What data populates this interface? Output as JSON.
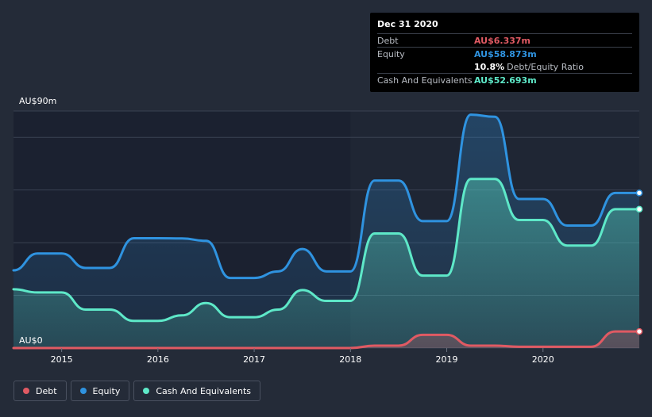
{
  "tooltip": {
    "date": "Dec 31 2020",
    "debt_label": "Debt",
    "debt_value": "AU$6.337m",
    "equity_label": "Equity",
    "equity_value": "AU$58.873m",
    "ratio_value": "10.8%",
    "ratio_label": "Debt/Equity Ratio",
    "cash_label": "Cash And Equivalents",
    "cash_value": "AU$52.693m"
  },
  "legend": [
    {
      "label": "Debt",
      "color": "#e05a63"
    },
    {
      "label": "Equity",
      "color": "#2f93e0"
    },
    {
      "label": "Cash And Equivalents",
      "color": "#5ee8c8"
    }
  ],
  "colors": {
    "debt": "#e05a63",
    "equity": "#2f93e0",
    "cash": "#5ee8c8",
    "grid": "#3a4252",
    "plot_bg": "#1b2130",
    "highlight_bg": "#1f2634"
  },
  "chart_data": {
    "type": "area",
    "title": "",
    "ylabel": "",
    "y_top_label": "AU$90m",
    "y_bottom_label": "AU$0",
    "ylim": [
      0,
      90
    ],
    "xlim": [
      2014.5,
      2021.0
    ],
    "x_ticks": [
      {
        "value": 2015,
        "label": "2015"
      },
      {
        "value": 2016,
        "label": "2016"
      },
      {
        "value": 2017,
        "label": "2017"
      },
      {
        "value": 2018,
        "label": "2018"
      },
      {
        "value": 2019,
        "label": "2019"
      },
      {
        "value": 2020,
        "label": "2020"
      }
    ],
    "y_grid": [
      0,
      20,
      40,
      60,
      80,
      90
    ],
    "highlight_start": 2018.0,
    "series": [
      {
        "name": "Equity",
        "points": [
          [
            2014.5,
            29.5
          ],
          [
            2014.75,
            35.9
          ],
          [
            2015.0,
            35.9
          ],
          [
            2015.25,
            30.4
          ],
          [
            2015.5,
            30.4
          ],
          [
            2015.75,
            41.7
          ],
          [
            2016.0,
            41.7
          ],
          [
            2016.25,
            41.6
          ],
          [
            2016.5,
            40.7
          ],
          [
            2016.75,
            26.6
          ],
          [
            2017.0,
            26.6
          ],
          [
            2017.25,
            29.1
          ],
          [
            2017.5,
            37.6
          ],
          [
            2017.75,
            29.1
          ],
          [
            2018.0,
            29.1
          ],
          [
            2018.25,
            63.6
          ],
          [
            2018.5,
            63.6
          ],
          [
            2018.75,
            48.2
          ],
          [
            2019.0,
            48.2
          ],
          [
            2019.25,
            88.6
          ],
          [
            2019.5,
            87.8
          ],
          [
            2019.75,
            56.6
          ],
          [
            2020.0,
            56.6
          ],
          [
            2020.25,
            46.5
          ],
          [
            2020.5,
            46.5
          ],
          [
            2020.75,
            58.9
          ],
          [
            2021.0,
            58.9
          ]
        ]
      },
      {
        "name": "Cash And Equivalents",
        "points": [
          [
            2014.5,
            22.3
          ],
          [
            2014.75,
            21.1
          ],
          [
            2015.0,
            21.1
          ],
          [
            2015.25,
            14.6
          ],
          [
            2015.5,
            14.6
          ],
          [
            2015.75,
            10.3
          ],
          [
            2016.0,
            10.3
          ],
          [
            2016.25,
            12.4
          ],
          [
            2016.5,
            17.1
          ],
          [
            2016.75,
            11.7
          ],
          [
            2017.0,
            11.7
          ],
          [
            2017.25,
            14.6
          ],
          [
            2017.5,
            22.0
          ],
          [
            2017.75,
            17.9
          ],
          [
            2018.0,
            17.9
          ],
          [
            2018.25,
            43.5
          ],
          [
            2018.5,
            43.5
          ],
          [
            2018.75,
            27.5
          ],
          [
            2019.0,
            27.5
          ],
          [
            2019.25,
            64.2
          ],
          [
            2019.5,
            64.2
          ],
          [
            2019.75,
            48.6
          ],
          [
            2020.0,
            48.6
          ],
          [
            2020.25,
            38.9
          ],
          [
            2020.5,
            38.9
          ],
          [
            2020.75,
            52.7
          ],
          [
            2021.0,
            52.7
          ]
        ]
      },
      {
        "name": "Debt",
        "points": [
          [
            2014.5,
            0.0
          ],
          [
            2014.75,
            0.0
          ],
          [
            2015.0,
            0.0
          ],
          [
            2015.5,
            0.0
          ],
          [
            2016.0,
            0.0
          ],
          [
            2016.5,
            0.0
          ],
          [
            2017.0,
            0.0
          ],
          [
            2017.5,
            0.0
          ],
          [
            2018.0,
            0.0
          ],
          [
            2018.25,
            0.9
          ],
          [
            2018.5,
            0.9
          ],
          [
            2018.75,
            5.0
          ],
          [
            2019.0,
            5.0
          ],
          [
            2019.25,
            0.9
          ],
          [
            2019.5,
            0.9
          ],
          [
            2019.75,
            0.5
          ],
          [
            2020.0,
            0.5
          ],
          [
            2020.25,
            0.5
          ],
          [
            2020.5,
            0.5
          ],
          [
            2020.75,
            6.3
          ],
          [
            2021.0,
            6.3
          ]
        ]
      }
    ]
  }
}
